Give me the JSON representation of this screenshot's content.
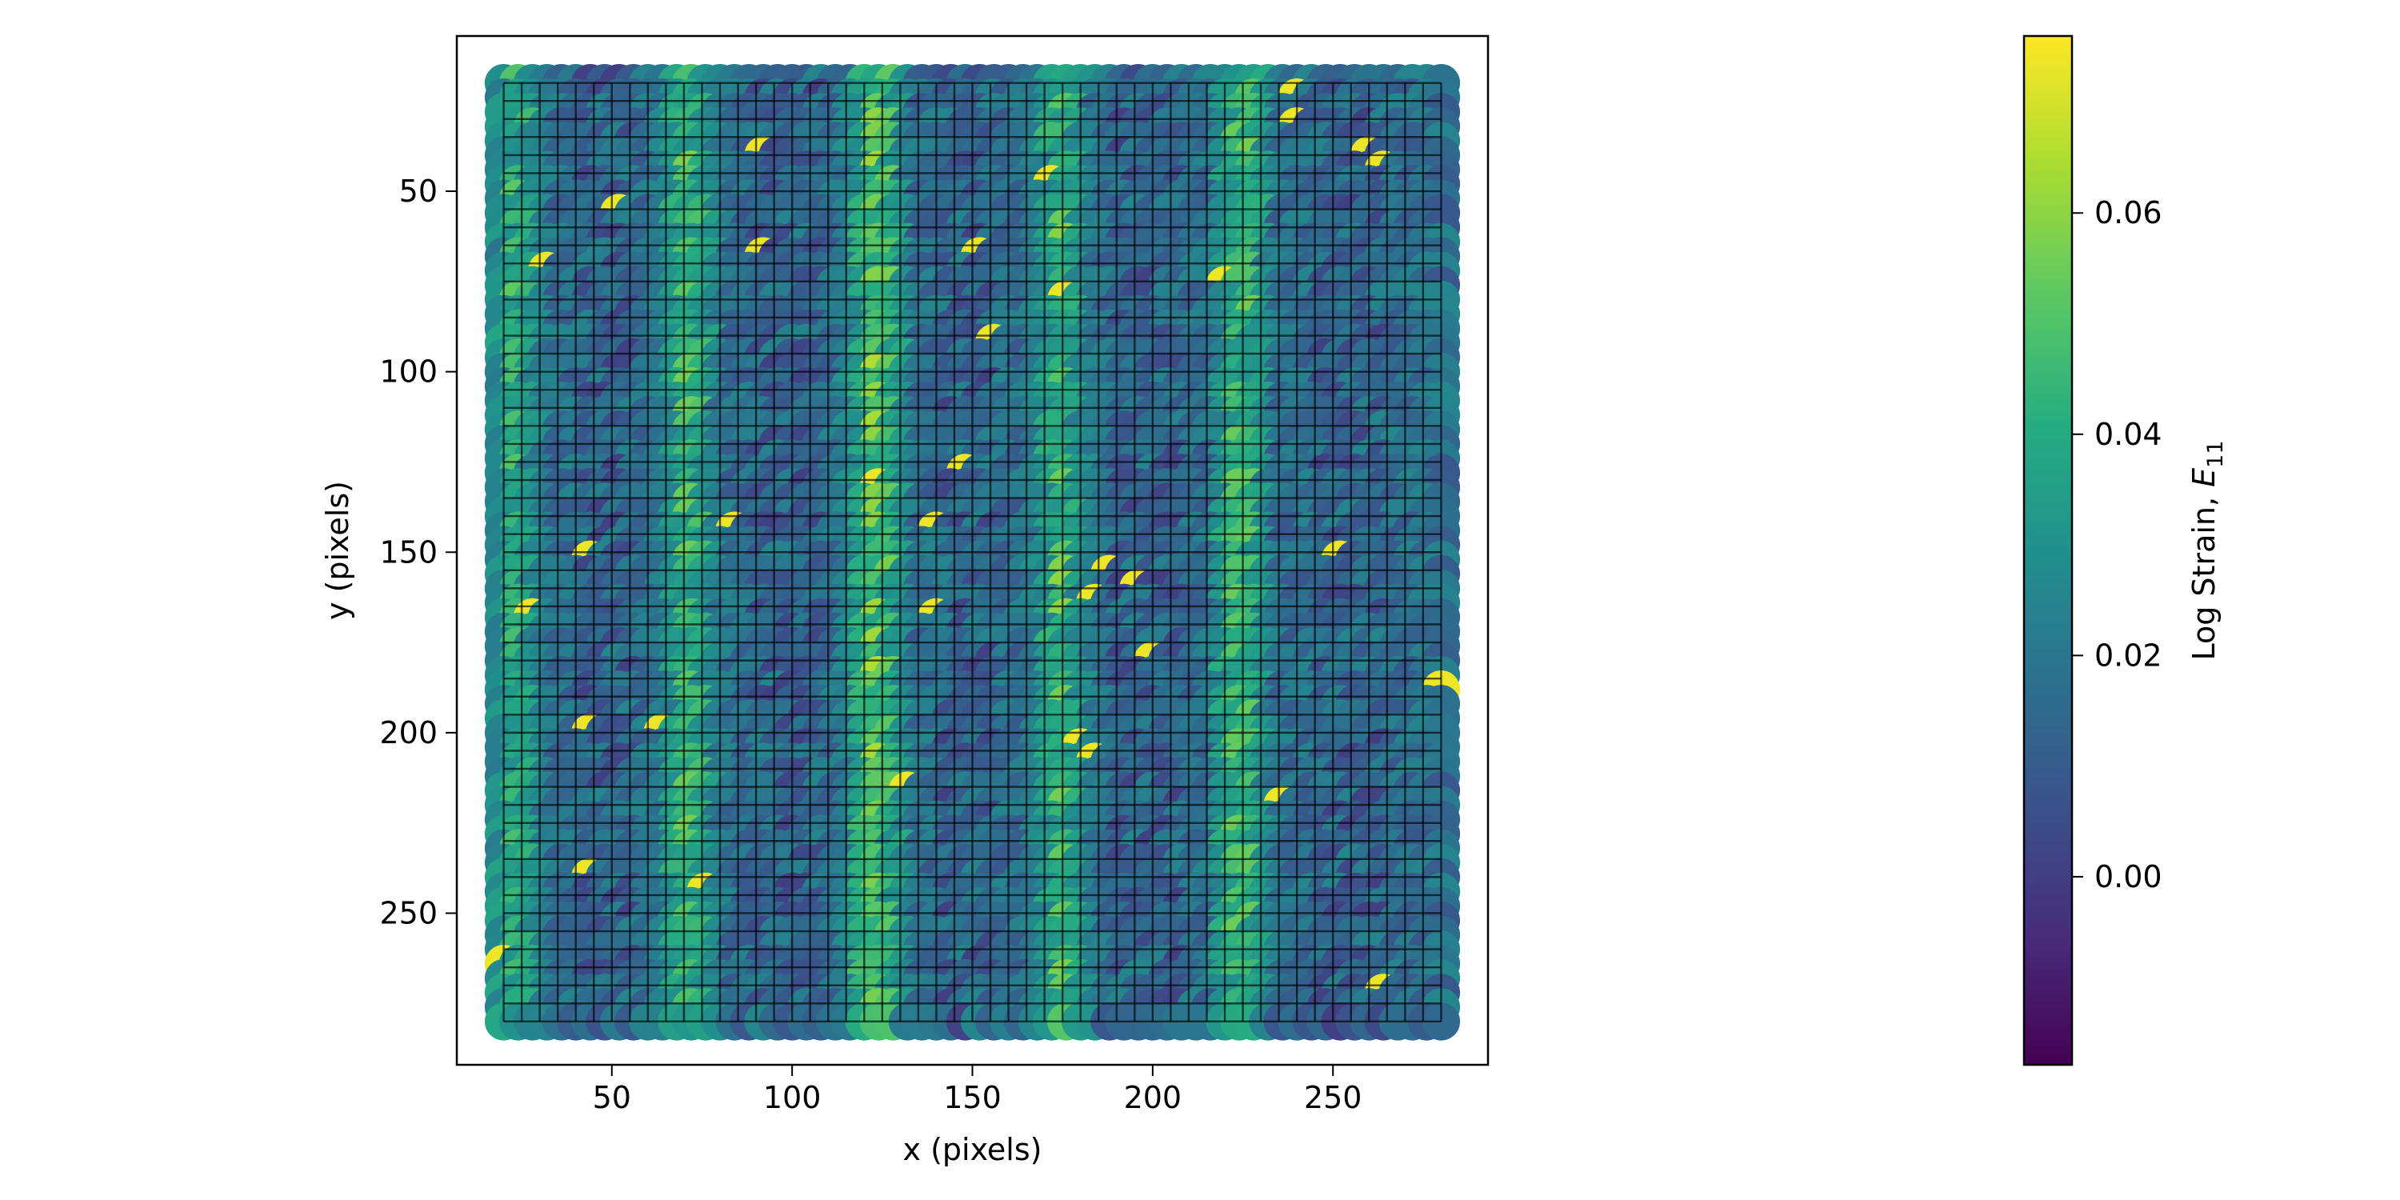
{
  "chart_data": {
    "type": "heatmap",
    "subtype": "strain field scatter over DIC mesh grid",
    "xlabel": "x (pixels)",
    "ylabel": "y (pixels)",
    "xlim": [
      7,
      293
    ],
    "ylim": [
      292,
      7
    ],
    "y_inverted": true,
    "x_ticks": [
      50,
      100,
      150,
      200,
      250
    ],
    "y_ticks": [
      50,
      100,
      150,
      200,
      250
    ],
    "data_extent": {
      "x": [
        18,
        282
      ],
      "y": [
        18,
        282
      ]
    },
    "mesh": {
      "spacing": 5,
      "x_start": 20,
      "x_end": 280,
      "y_start": 20,
      "y_end": 280,
      "line_color": "#000000"
    },
    "vertical_bands": [
      {
        "x_center": 73,
        "level": 0.052
      },
      {
        "x_center": 125,
        "level": 0.062
      },
      {
        "x_center": 176,
        "level": 0.05
      },
      {
        "x_center": 226,
        "level": 0.056
      },
      {
        "x_center": 25,
        "level": 0.045
      }
    ],
    "colorbar": {
      "label_prefix": "Log Strain, ",
      "label_symbol": "E",
      "label_subscript": "11",
      "colormap": "viridis",
      "vmin": -0.017,
      "vmax": 0.076,
      "ticks": [
        0.0,
        0.02,
        0.04,
        0.06
      ],
      "tick_labels": [
        "0.00",
        "0.02",
        "0.04",
        "0.06"
      ]
    },
    "grid": false,
    "legend": "none"
  }
}
